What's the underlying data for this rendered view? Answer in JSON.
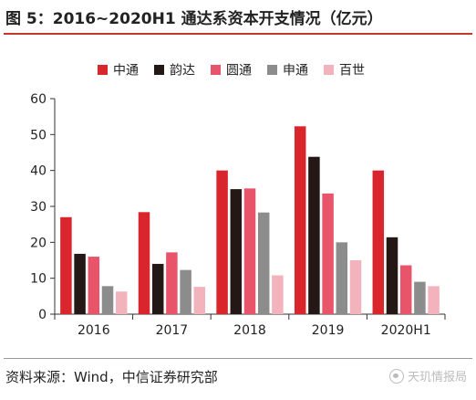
{
  "figure": {
    "title": "图 5：2016~2020H1 通达系资本开支情况（亿元）",
    "source": "资料来源：Wind，中信证券研究部",
    "watermark": "天玑情报局"
  },
  "chart_data": {
    "type": "bar",
    "title": "",
    "xlabel": "",
    "ylabel": "",
    "categories": [
      "2016",
      "2017",
      "2018",
      "2019",
      "2020H1"
    ],
    "ylim": [
      0,
      60
    ],
    "yticks": [
      0,
      10,
      20,
      30,
      40,
      50,
      60
    ],
    "grid": false,
    "legend_position": "top",
    "series": [
      {
        "name": "中通",
        "color": "#d9262c",
        "values": [
          27,
          28.4,
          40,
          52.3,
          40
        ]
      },
      {
        "name": "韵达",
        "color": "#231815",
        "values": [
          16.8,
          14,
          34.8,
          43.8,
          21.4
        ]
      },
      {
        "name": "圆通",
        "color": "#e8556b",
        "values": [
          16,
          17.2,
          35,
          33.6,
          13.6
        ]
      },
      {
        "name": "申通",
        "color": "#8c8c8c",
        "values": [
          7.8,
          12.3,
          28.3,
          20,
          9
        ]
      },
      {
        "name": "百世",
        "color": "#f3b3bd",
        "values": [
          6.3,
          7.6,
          10.8,
          15,
          7.8
        ]
      }
    ]
  }
}
